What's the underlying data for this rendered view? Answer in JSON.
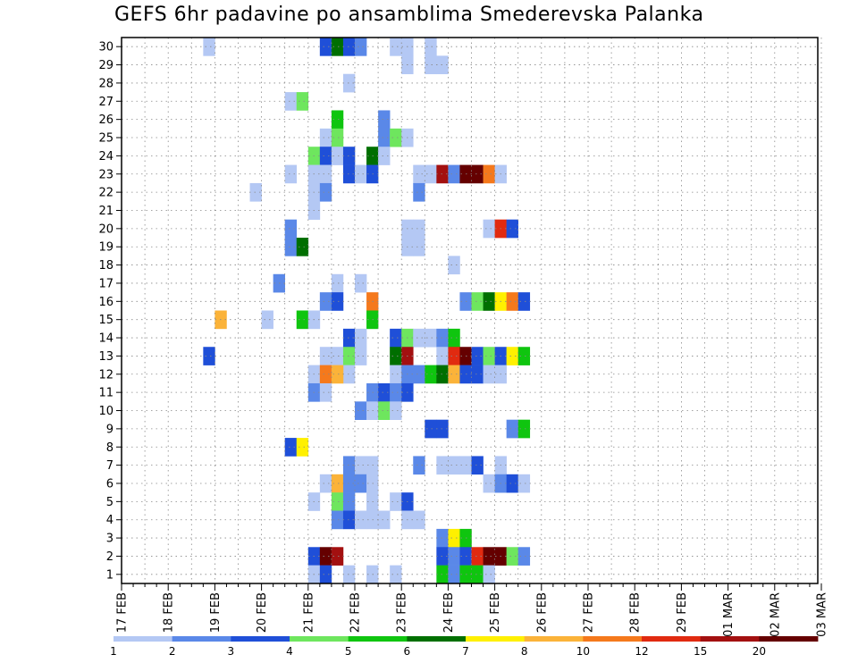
{
  "chart_data": {
    "type": "heatmap",
    "title": "GEFS 6hr padavine po ansamblima Smederevska Palanka",
    "xlabel": "",
    "ylabel": "",
    "x_tick_labels": [
      "17 FEB",
      "18 FEB",
      "19 FEB",
      "20 FEB",
      "21 FEB",
      "22 FEB",
      "23 FEB",
      "24 FEB",
      "25 FEB",
      "26 FEB",
      "27 FEB",
      "28 FEB",
      "29 FEB",
      "01 MAR",
      "02 MAR",
      "03 MAR"
    ],
    "y_tick_labels": [
      "1",
      "2",
      "3",
      "4",
      "5",
      "6",
      "7",
      "8",
      "9",
      "10",
      "11",
      "12",
      "13",
      "14",
      "15",
      "16",
      "17",
      "18",
      "19",
      "20",
      "21",
      "22",
      "23",
      "24",
      "25",
      "26",
      "27",
      "28",
      "29",
      "30"
    ],
    "xlim_hours": [
      0,
      360
    ],
    "ylim": [
      0.5,
      30.5
    ],
    "step_hours": 6,
    "grid": true,
    "colorbar": {
      "labels": [
        "1",
        "2",
        "3",
        "4",
        "5",
        "6",
        "7",
        "8",
        "10",
        "12",
        "15",
        "20"
      ],
      "colors": [
        "#b4c8f4",
        "#5a88e8",
        "#1f4fd8",
        "#6ee65e",
        "#0fc50f",
        "#006f00",
        "#fff000",
        "#fbb339",
        "#f5791c",
        "#e12a10",
        "#a31010",
        "#650000"
      ]
    },
    "cells": [
      [
        42,
        30,
        1
      ],
      [
        102,
        30,
        3
      ],
      [
        108,
        30,
        6
      ],
      [
        114,
        30,
        3
      ],
      [
        120,
        30,
        2
      ],
      [
        138,
        30,
        1
      ],
      [
        144,
        30,
        1
      ],
      [
        156,
        30,
        1
      ],
      [
        144,
        29,
        1
      ],
      [
        156,
        29,
        1
      ],
      [
        162,
        29,
        1
      ],
      [
        114,
        28,
        1
      ],
      [
        84,
        27,
        1
      ],
      [
        90,
        27,
        4
      ],
      [
        108,
        26,
        5
      ],
      [
        132,
        26,
        2
      ],
      [
        102,
        25,
        1
      ],
      [
        108,
        25,
        4
      ],
      [
        132,
        25,
        2
      ],
      [
        138,
        25,
        4
      ],
      [
        144,
        25,
        1
      ],
      [
        96,
        24,
        4
      ],
      [
        102,
        24,
        3
      ],
      [
        108,
        24,
        1
      ],
      [
        114,
        24,
        3
      ],
      [
        126,
        24,
        6
      ],
      [
        132,
        24,
        1
      ],
      [
        84,
        23,
        1
      ],
      [
        96,
        23,
        1
      ],
      [
        102,
        23,
        1
      ],
      [
        114,
        23,
        3
      ],
      [
        120,
        23,
        1
      ],
      [
        126,
        23,
        3
      ],
      [
        150,
        23,
        1
      ],
      [
        156,
        23,
        1
      ],
      [
        162,
        23,
        11
      ],
      [
        168,
        23,
        2
      ],
      [
        174,
        23,
        12
      ],
      [
        180,
        23,
        12
      ],
      [
        186,
        23,
        9
      ],
      [
        192,
        23,
        1
      ],
      [
        66,
        22,
        1
      ],
      [
        96,
        22,
        1
      ],
      [
        102,
        22,
        2
      ],
      [
        150,
        22,
        2
      ],
      [
        96,
        21,
        1
      ],
      [
        84,
        20,
        2
      ],
      [
        144,
        20,
        1
      ],
      [
        150,
        20,
        1
      ],
      [
        186,
        20,
        1
      ],
      [
        192,
        20,
        10
      ],
      [
        198,
        20,
        3
      ],
      [
        84,
        19,
        2
      ],
      [
        90,
        19,
        6
      ],
      [
        144,
        19,
        1
      ],
      [
        150,
        19,
        1
      ],
      [
        168,
        18,
        1
      ],
      [
        78,
        17,
        2
      ],
      [
        108,
        17,
        1
      ],
      [
        120,
        17,
        1
      ],
      [
        102,
        16,
        2
      ],
      [
        108,
        16,
        3
      ],
      [
        126,
        16,
        9
      ],
      [
        174,
        16,
        2
      ],
      [
        180,
        16,
        4
      ],
      [
        186,
        16,
        6
      ],
      [
        192,
        16,
        7
      ],
      [
        198,
        16,
        9
      ],
      [
        204,
        16,
        3
      ],
      [
        48,
        15,
        8
      ],
      [
        72,
        15,
        1
      ],
      [
        90,
        15,
        5
      ],
      [
        96,
        15,
        1
      ],
      [
        126,
        15,
        5
      ],
      [
        114,
        14,
        3
      ],
      [
        120,
        14,
        1
      ],
      [
        138,
        14,
        3
      ],
      [
        144,
        14,
        4
      ],
      [
        150,
        14,
        1
      ],
      [
        156,
        14,
        1
      ],
      [
        162,
        14,
        2
      ],
      [
        168,
        14,
        5
      ],
      [
        42,
        13,
        3
      ],
      [
        102,
        13,
        1
      ],
      [
        108,
        13,
        1
      ],
      [
        114,
        13,
        4
      ],
      [
        120,
        13,
        1
      ],
      [
        114,
        12,
        1
      ],
      [
        138,
        13,
        6
      ],
      [
        144,
        13,
        11
      ],
      [
        162,
        13,
        1
      ],
      [
        168,
        13,
        10
      ],
      [
        174,
        13,
        12
      ],
      [
        180,
        13,
        3
      ],
      [
        186,
        13,
        4
      ],
      [
        192,
        13,
        3
      ],
      [
        198,
        13,
        7
      ],
      [
        204,
        13,
        5
      ],
      [
        96,
        12,
        1
      ],
      [
        102,
        12,
        9
      ],
      [
        108,
        12,
        8
      ],
      [
        138,
        12,
        1
      ],
      [
        150,
        12,
        2
      ],
      [
        156,
        12,
        5
      ],
      [
        162,
        12,
        6
      ],
      [
        168,
        12,
        8
      ],
      [
        174,
        12,
        3
      ],
      [
        180,
        12,
        3
      ],
      [
        186,
        12,
        1
      ],
      [
        192,
        12,
        1
      ],
      [
        144,
        12,
        2
      ],
      [
        96,
        11,
        2
      ],
      [
        102,
        11,
        1
      ],
      [
        126,
        11,
        2
      ],
      [
        132,
        11,
        3
      ],
      [
        138,
        11,
        2
      ],
      [
        144,
        11,
        3
      ],
      [
        120,
        10,
        2
      ],
      [
        126,
        10,
        1
      ],
      [
        132,
        10,
        4
      ],
      [
        138,
        10,
        1
      ],
      [
        156,
        9,
        3
      ],
      [
        162,
        9,
        3
      ],
      [
        198,
        9,
        2
      ],
      [
        204,
        9,
        5
      ],
      [
        84,
        8,
        3
      ],
      [
        90,
        8,
        7
      ],
      [
        114,
        7,
        2
      ],
      [
        120,
        7,
        1
      ],
      [
        126,
        7,
        1
      ],
      [
        150,
        7,
        2
      ],
      [
        162,
        7,
        1
      ],
      [
        168,
        7,
        1
      ],
      [
        174,
        7,
        1
      ],
      [
        180,
        7,
        3
      ],
      [
        192,
        7,
        1
      ],
      [
        102,
        6,
        1
      ],
      [
        108,
        6,
        8
      ],
      [
        114,
        6,
        2
      ],
      [
        120,
        6,
        2
      ],
      [
        126,
        6,
        1
      ],
      [
        186,
        6,
        1
      ],
      [
        192,
        6,
        2
      ],
      [
        198,
        6,
        3
      ],
      [
        204,
        6,
        1
      ],
      [
        96,
        5,
        1
      ],
      [
        108,
        5,
        4
      ],
      [
        114,
        5,
        2
      ],
      [
        126,
        5,
        1
      ],
      [
        138,
        5,
        1
      ],
      [
        144,
        5,
        3
      ],
      [
        108,
        4,
        2
      ],
      [
        114,
        4,
        3
      ],
      [
        120,
        4,
        1
      ],
      [
        126,
        4,
        1
      ],
      [
        132,
        4,
        1
      ],
      [
        144,
        4,
        1
      ],
      [
        150,
        4,
        1
      ],
      [
        162,
        3,
        2
      ],
      [
        168,
        3,
        7
      ],
      [
        174,
        3,
        5
      ],
      [
        96,
        2,
        3
      ],
      [
        102,
        2,
        12
      ],
      [
        108,
        2,
        11
      ],
      [
        162,
        2,
        3
      ],
      [
        168,
        2,
        2
      ],
      [
        174,
        2,
        3
      ],
      [
        180,
        2,
        10
      ],
      [
        186,
        2,
        12
      ],
      [
        192,
        2,
        12
      ],
      [
        198,
        2,
        4
      ],
      [
        204,
        2,
        2
      ],
      [
        96,
        1,
        1
      ],
      [
        102,
        1,
        3
      ],
      [
        114,
        1,
        1
      ],
      [
        126,
        1,
        1
      ],
      [
        138,
        1,
        1
      ],
      [
        162,
        1,
        5
      ],
      [
        168,
        1,
        2
      ],
      [
        174,
        1,
        5
      ],
      [
        180,
        1,
        5
      ],
      [
        186,
        1,
        1
      ]
    ]
  }
}
